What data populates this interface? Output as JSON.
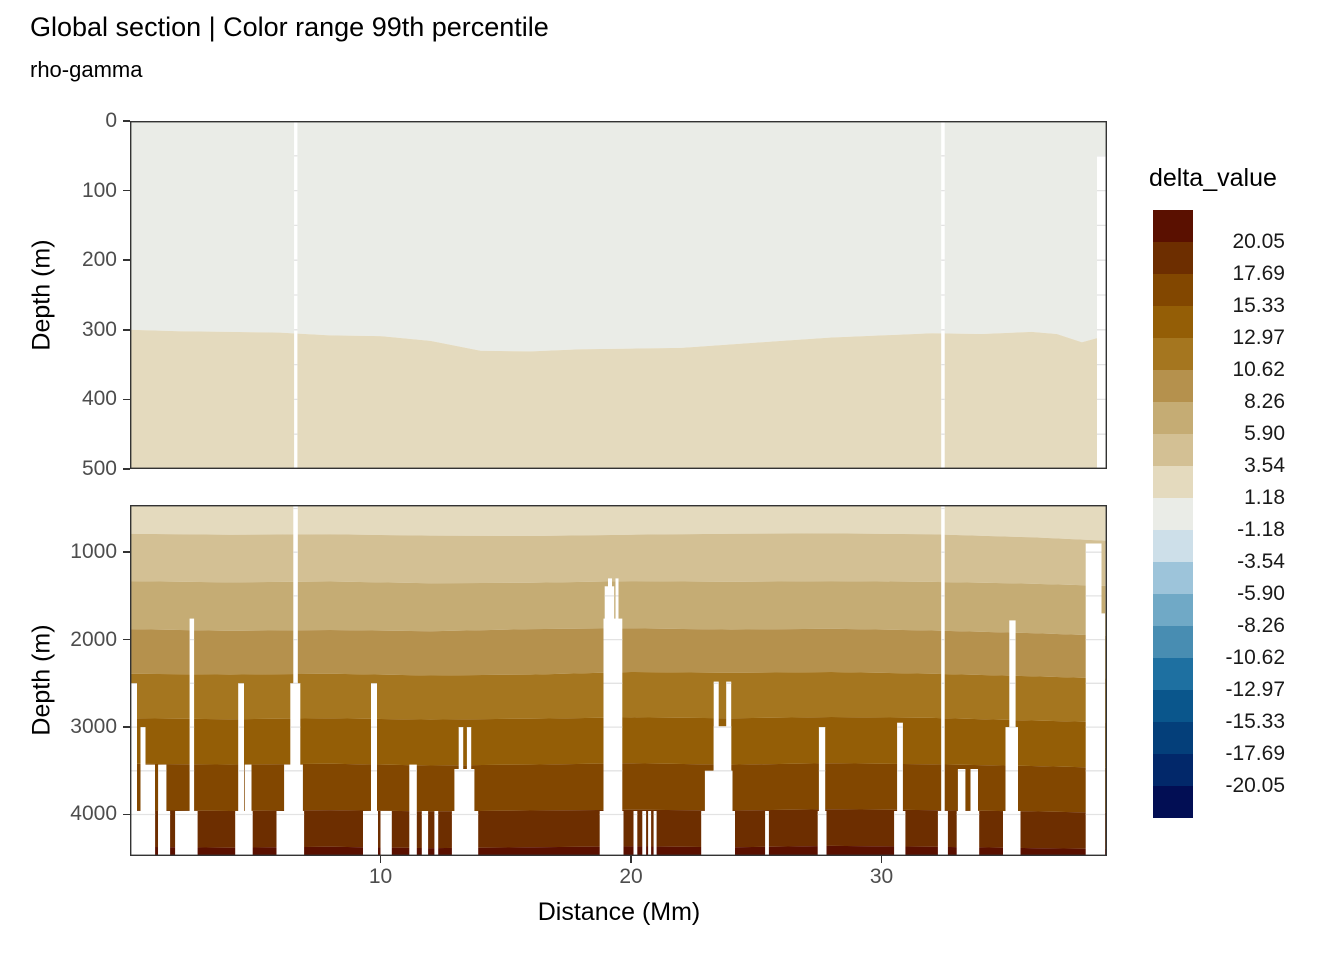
{
  "title": "Global section | Color range 99th percentile",
  "subtitle": "rho-gamma",
  "y_axis_label": "Depth (m)",
  "x_axis": {
    "label": "Distance (Mm)",
    "ticks": [
      10,
      20,
      30
    ],
    "range": [
      0,
      39
    ]
  },
  "legend": {
    "title": "delta_value",
    "labels": [
      "20.05",
      "17.69",
      "15.33",
      "12.97",
      "10.62",
      "8.26",
      "5.90",
      "3.54",
      "1.18",
      "-1.18",
      "-3.54",
      "-5.90",
      "-8.26",
      "-10.62",
      "-12.97",
      "-15.33",
      "-17.69",
      "-20.05"
    ]
  },
  "chart_data": {
    "type": "heatmap",
    "title": "Global section | Color range 99th percentile",
    "subtitle": "rho-gamma",
    "xlabel": "Distance (Mm)",
    "ylabel": "Depth (m)",
    "x_range": [
      0,
      39
    ],
    "legend_title": "delta_value",
    "value_breaks_desc": [
      20.05,
      17.69,
      15.33,
      12.97,
      10.62,
      8.26,
      5.9,
      3.54,
      1.18,
      -1.18,
      -3.54,
      -5.9,
      -8.26,
      -10.62,
      -12.97,
      -15.33,
      -17.69,
      -20.05
    ],
    "palette": [
      "#5a1000",
      "#6d2e00",
      "#824700",
      "#945e06",
      "#a5761f",
      "#b5914d",
      "#c5ac74",
      "#d3c094",
      "#e4dabe",
      "#eaece7",
      "#cddfe9",
      "#9dc4da",
      "#70a9c6",
      "#488db2",
      "#1e70a1",
      "#0a568c",
      "#043f7a",
      "#02286a",
      "#020e54"
    ],
    "palette_order": "highest delta band (top) to lowest delta band (bottom)",
    "grid_color": "#e3e3e3",
    "panels": [
      {
        "id": "upper",
        "depth_range": [
          0,
          500
        ],
        "depth_ticks": [
          0,
          100,
          200,
          300,
          400,
          500
        ],
        "gridlines": [
          50,
          100,
          150,
          200,
          250,
          300,
          350,
          400,
          450
        ],
        "band_values": [
          "-1.18 to 1.18",
          "1.18 to 3.54"
        ],
        "band_colors": [
          "#eaece7",
          "#e4dabe"
        ],
        "boundary_x": [
          0,
          2,
          4,
          6,
          8,
          10,
          12,
          14,
          16,
          18,
          20,
          22,
          24,
          26,
          28,
          30,
          32,
          34,
          36,
          37,
          38,
          39
        ],
        "boundaries": [
          [
            300,
            302,
            303,
            304,
            308,
            309,
            316,
            330,
            331,
            328,
            327,
            326,
            321,
            316,
            311,
            308,
            305,
            306,
            303,
            306,
            318,
            308
          ]
        ],
        "gaps": [
          [
            6.55,
            6.68,
            0
          ],
          [
            32.38,
            32.52,
            0
          ],
          [
            38.6,
            38.95,
            50
          ]
        ]
      },
      {
        "id": "lower",
        "depth_range": [
          460,
          4475
        ],
        "depth_ticks": [
          1000,
          2000,
          3000,
          4000
        ],
        "gridlines": [
          500,
          1000,
          1500,
          2000,
          2500,
          3000,
          3500,
          4000
        ],
        "band_values": [
          "1.18 to 3.54",
          "3.54 to 5.90",
          "5.90 to 8.26",
          "8.26 to 10.62",
          "10.62 to 12.97",
          "12.97 to 15.33",
          "15.33 to 17.69",
          "17.69 to 20.05",
          "> 20.05"
        ],
        "band_colors": [
          "#e4dabe",
          "#d3c094",
          "#c5ac74",
          "#b5914d",
          "#a5761f",
          "#945e06",
          "#824700",
          "#6d2e00",
          "#5a1000"
        ],
        "boundary_x": [
          0,
          4,
          8,
          12,
          16,
          20,
          24,
          28,
          32,
          36,
          39
        ],
        "boundaries": [
          [
            790,
            800,
            795,
            810,
            815,
            800,
            790,
            785,
            795,
            830,
            870
          ],
          [
            1330,
            1345,
            1335,
            1355,
            1350,
            1330,
            1340,
            1330,
            1340,
            1360,
            1385
          ],
          [
            1880,
            1900,
            1890,
            1905,
            1880,
            1870,
            1885,
            1875,
            1895,
            1925,
            1955
          ],
          [
            2390,
            2400,
            2390,
            2410,
            2400,
            2370,
            2380,
            2370,
            2390,
            2420,
            2445
          ],
          [
            2900,
            2910,
            2900,
            2915,
            2905,
            2890,
            2900,
            2885,
            2895,
            2925,
            2945
          ],
          [
            3420,
            3430,
            3420,
            3440,
            3430,
            3415,
            3430,
            3415,
            3425,
            3445,
            3465
          ],
          [
            3950,
            3960,
            3950,
            3965,
            3955,
            3945,
            3955,
            3940,
            3950,
            3965,
            3980
          ],
          [
            4370,
            4380,
            4370,
            4385,
            4375,
            4365,
            4375,
            4360,
            4370,
            4385,
            4395
          ]
        ],
        "gaps": [
          [
            0.0,
            0.28,
            2500
          ],
          [
            0.42,
            0.62,
            3000
          ],
          [
            0.62,
            1.0,
            3430
          ],
          [
            1.12,
            1.45,
            3430
          ],
          [
            0.0,
            1.0,
            3960
          ],
          [
            1.12,
            1.6,
            3960
          ],
          [
            1.8,
            2.7,
            3960
          ],
          [
            2.38,
            2.56,
            1760
          ],
          [
            4.32,
            4.55,
            2500
          ],
          [
            4.58,
            4.85,
            3430
          ],
          [
            4.2,
            4.9,
            3960
          ],
          [
            6.52,
            6.7,
            460
          ],
          [
            6.4,
            6.8,
            2500
          ],
          [
            6.15,
            6.9,
            3430
          ],
          [
            5.85,
            6.95,
            3960
          ],
          [
            9.62,
            9.86,
            2500
          ],
          [
            9.3,
            9.9,
            3960
          ],
          [
            10.0,
            10.45,
            3960
          ],
          [
            11.15,
            11.45,
            3430
          ],
          [
            11.65,
            11.9,
            3960
          ],
          [
            12.15,
            12.3,
            3960
          ],
          [
            13.12,
            13.3,
            3000
          ],
          [
            13.45,
            13.62,
            3000
          ],
          [
            12.95,
            13.75,
            3480
          ],
          [
            12.85,
            13.9,
            3960
          ],
          [
            19.08,
            19.24,
            1300
          ],
          [
            19.38,
            19.5,
            1300
          ],
          [
            18.95,
            19.33,
            1390
          ],
          [
            18.9,
            19.65,
            1760
          ],
          [
            18.75,
            19.7,
            3960
          ],
          [
            20.1,
            20.25,
            3960
          ],
          [
            20.45,
            20.6,
            3960
          ],
          [
            20.68,
            20.8,
            3960
          ],
          [
            20.9,
            21.02,
            3960
          ],
          [
            23.3,
            23.5,
            2480
          ],
          [
            23.8,
            24.0,
            2480
          ],
          [
            23.3,
            24.0,
            2990
          ],
          [
            22.95,
            24.05,
            3500
          ],
          [
            22.8,
            24.15,
            3960
          ],
          [
            25.35,
            25.5,
            3960
          ],
          [
            27.5,
            27.75,
            3000
          ],
          [
            27.45,
            27.8,
            3960
          ],
          [
            30.62,
            30.85,
            2950
          ],
          [
            30.5,
            30.95,
            3960
          ],
          [
            32.38,
            32.52,
            460
          ],
          [
            32.25,
            32.65,
            3960
          ],
          [
            33.05,
            33.35,
            3480
          ],
          [
            33.55,
            33.85,
            3480
          ],
          [
            33.0,
            33.9,
            3960
          ],
          [
            35.1,
            35.35,
            1780
          ],
          [
            34.95,
            35.45,
            3000
          ],
          [
            34.85,
            35.55,
            3960
          ],
          [
            38.15,
            38.78,
            900
          ],
          [
            38.78,
            38.92,
            1700
          ],
          [
            38.94,
            39.0,
            900
          ]
        ]
      }
    ]
  }
}
